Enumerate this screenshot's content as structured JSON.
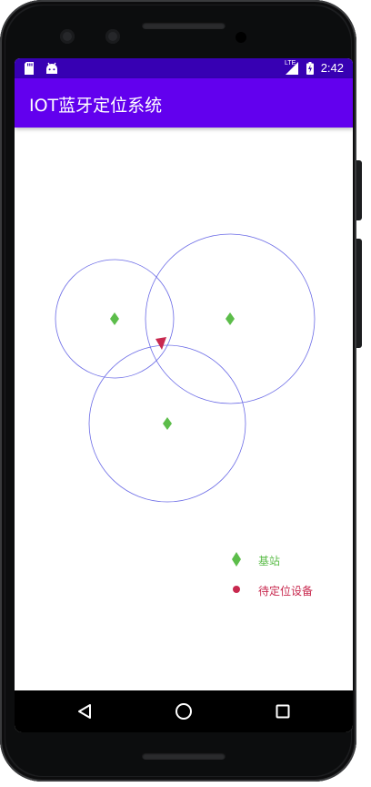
{
  "app": {
    "title": "IOT蓝牙定位系统"
  },
  "status_bar": {
    "time": "2:42",
    "network": "LTE",
    "icons": [
      "sd-card-icon",
      "android-icon",
      "lte-signal-icon",
      "battery-charging-icon"
    ]
  },
  "colors": {
    "status_bar": "#3700b3",
    "app_bar": "#6200ee",
    "circle_stroke": "#6a6ae6",
    "base_station": "#5cbd4a",
    "device": "#c8284e"
  },
  "legend": {
    "base_station_label": "基站",
    "device_label": "待定位设备"
  },
  "nav": {
    "back": "back-icon",
    "home": "home-icon",
    "recents": "recents-icon"
  }
}
